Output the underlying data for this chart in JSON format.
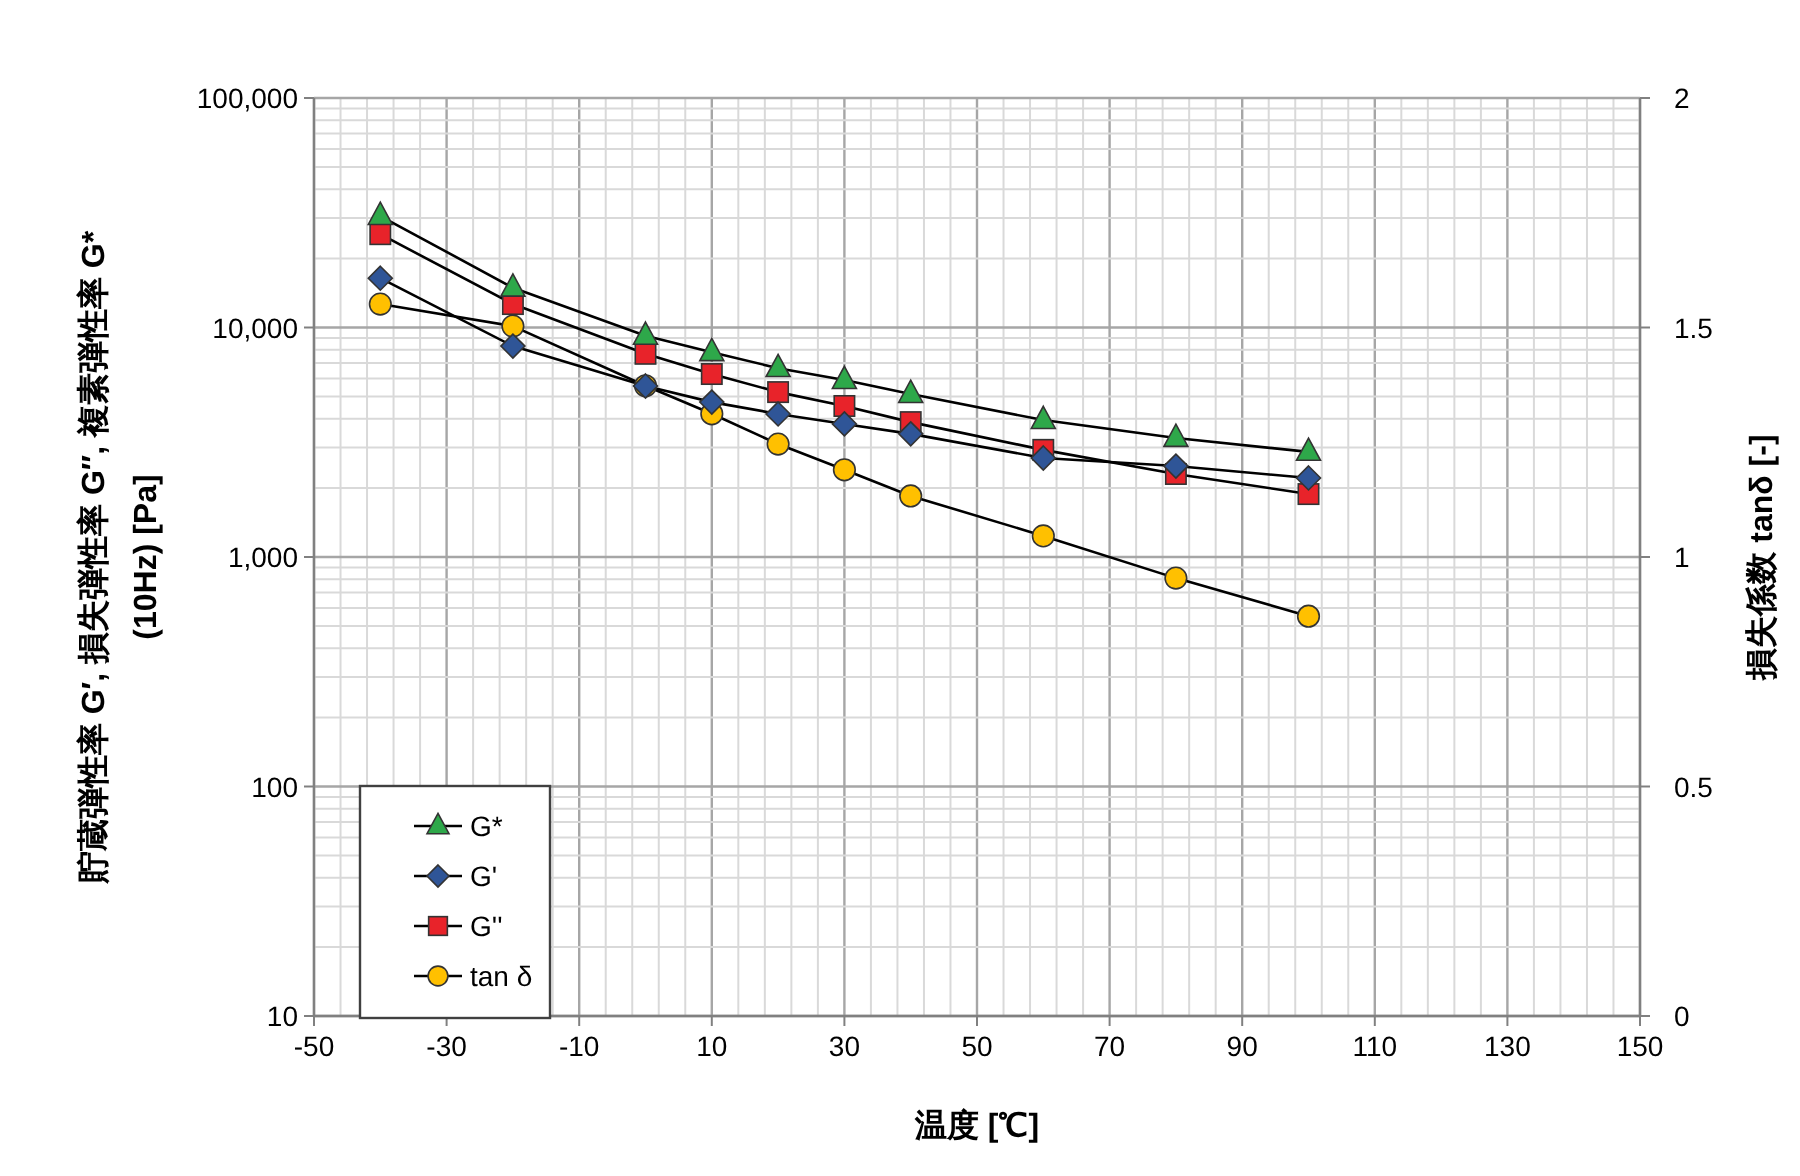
{
  "chart_data": {
    "type": "line",
    "xlabel": "温度 [℃]",
    "ylabel": "貯蔵弾性率 G′, 損失弾性率 G″, 複素弾性率 G*\n(10Hz) [Pa]",
    "y2label": "損失係数 tanδ [-]",
    "x": [
      -40,
      -20,
      0,
      10,
      20,
      30,
      40,
      60,
      80,
      100
    ],
    "series": [
      {
        "name": "G*",
        "color": "#2ea84a",
        "marker": "triangle",
        "values": [
          30600,
          14900,
          9200,
          7800,
          6650,
          5900,
          5130,
          3950,
          3300,
          2870
        ]
      },
      {
        "name": "G'",
        "color": "#2f5597",
        "marker": "diamond",
        "values": [
          16400,
          8300,
          5560,
          4730,
          4200,
          3800,
          3440,
          2700,
          2490,
          2210
        ]
      },
      {
        "name": "G''",
        "color": "#e8232a",
        "marker": "square",
        "values": [
          25500,
          12650,
          7680,
          6270,
          5230,
          4550,
          3870,
          2930,
          2300,
          1880
        ]
      },
      {
        "name": "tan δ",
        "color": "#ffc000",
        "marker": "circle",
        "axis": "y2",
        "values": [
          1.551,
          1.503,
          1.373,
          1.312,
          1.246,
          1.19,
          1.133,
          1.046,
          0.954,
          0.871
        ]
      }
    ],
    "xlim": [
      -50,
      150
    ],
    "xticks": [
      -50,
      -30,
      -10,
      10,
      30,
      50,
      70,
      90,
      110,
      130,
      150
    ],
    "ylim": [
      10,
      100000
    ],
    "yticks": [
      10,
      100,
      {
        "value": 1000,
        "label": "1,000"
      },
      {
        "value": 10000,
        "label": "10,000"
      },
      {
        "value": 100000,
        "label": "100,000"
      }
    ],
    "y2lim": [
      0,
      2
    ],
    "y2ticks": [
      0,
      0.5,
      1,
      1.5,
      2
    ],
    "log": "y",
    "grid": true,
    "legend": "bottom left",
    "line_style": "solid"
  }
}
